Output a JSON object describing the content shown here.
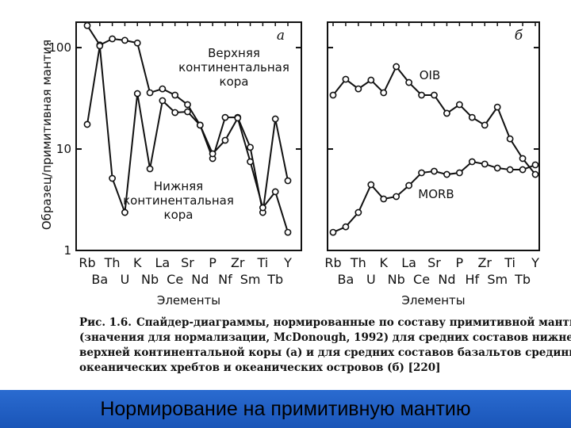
{
  "chart_data": [
    {
      "type": "line",
      "panel_label": "а",
      "log_scale": true,
      "ylabel": "Образец/примитивная мантия",
      "xlabel": "Элементы",
      "categories": [
        "Rb",
        "Ba",
        "Th",
        "U",
        "K",
        "Nb",
        "La",
        "Ce",
        "Sr",
        "Nd",
        "P",
        "Nf",
        "Zr",
        "Sm",
        "Ti",
        "Tb",
        "Y"
      ],
      "ylim": [
        1,
        178
      ],
      "yticks": [
        1,
        10,
        100
      ],
      "series": [
        {
          "name": "Верхняя континентальная кора",
          "color": "#111111",
          "values": [
            165,
            106,
            122,
            118,
            111,
            35.9,
            39.2,
            34.0,
            27.4,
            17.2,
            8.06,
            20.5,
            20.5,
            10.4,
            2.37,
            19.8,
            4.87
          ]
        },
        {
          "name": "Нижняя континентальная кора",
          "color": "#111111",
          "values": [
            17.5,
            104,
            5.14,
            2.37,
            35.2,
            6.38,
            30.0,
            22.9,
            23.3,
            17.2,
            8.98,
            12.2,
            20.2,
            7.5,
            2.64,
            3.79,
            1.51
          ]
        }
      ]
    },
    {
      "type": "line",
      "panel_label": "б",
      "log_scale": true,
      "xlabel": "Элементы",
      "categories": [
        "Rb",
        "Ba",
        "Th",
        "U",
        "K",
        "Nb",
        "La",
        "Ce",
        "Sr",
        "Nd",
        "P",
        "Hf",
        "Zr",
        "Sm",
        "Ti",
        "Tb",
        "Y"
      ],
      "ylim": [
        1,
        178
      ],
      "yticks": [
        1,
        10,
        100
      ],
      "series": [
        {
          "name": "OIB",
          "color": "#111111",
          "values": [
            34.0,
            48.7,
            39.2,
            47.8,
            35.9,
            64.9,
            45.3,
            34.0,
            34.0,
            22.5,
            27.4,
            20.5,
            17.2,
            25.9,
            12.6,
            8.06,
            5.62
          ]
        },
        {
          "name": "MORB",
          "color": "#111111",
          "values": [
            1.51,
            1.71,
            2.37,
            4.45,
            3.22,
            3.4,
            4.37,
            5.83,
            6.04,
            5.62,
            5.83,
            7.5,
            7.11,
            6.49,
            6.26,
            6.26,
            6.98
          ]
        }
      ]
    }
  ],
  "caption": {
    "label": "Рис. 1.6.",
    "lines": [
      "Спайдер-диаграммы, нормированные по составу примитивной мантии",
      "(значения для нормализации, McDonough, 1992) для средних составов нижней и",
      "верхней континентальной коры (а) и для средних составов базальтов срединно-",
      "океанических хребтов и океанических островов (б) [220]"
    ]
  },
  "footer": "Нормирование на примитивную мантию"
}
